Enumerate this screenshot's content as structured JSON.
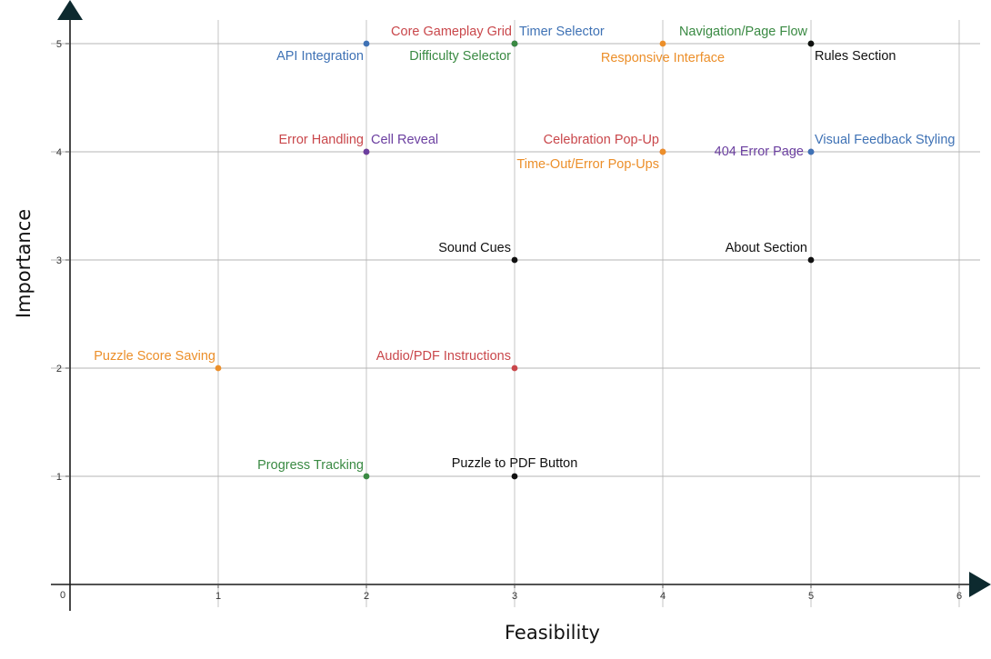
{
  "chart_data": {
    "type": "scatter",
    "xlabel": "Feasibility",
    "ylabel": "Importance",
    "xlim": [
      0,
      6
    ],
    "ylim": [
      0,
      5
    ],
    "x_ticks": [
      "0",
      "1",
      "2",
      "3",
      "4",
      "5",
      "6"
    ],
    "y_ticks": [
      "1",
      "2",
      "3",
      "4",
      "5"
    ],
    "grid": true,
    "colors": {
      "red": "#c9474b",
      "blue": "#3f72b5",
      "green": "#3a8a43",
      "orange": "#ec8f2a",
      "purple": "#6b3fa0",
      "black": "#111111"
    },
    "points": [
      {
        "label": "API Integration",
        "x": 2,
        "y": 5,
        "color": "blue"
      },
      {
        "label": "Core Gameplay Grid",
        "x": 3,
        "y": 5,
        "color": "red"
      },
      {
        "label": "Timer Selector",
        "x": 3,
        "y": 5,
        "color": "blue"
      },
      {
        "label": "Difficulty Selector",
        "x": 3,
        "y": 5,
        "color": "green"
      },
      {
        "label": "Responsive Interface",
        "x": 4,
        "y": 5,
        "color": "orange"
      },
      {
        "label": "Navigation/Page Flow",
        "x": 5,
        "y": 5,
        "color": "green"
      },
      {
        "label": "Rules Section",
        "x": 5,
        "y": 5,
        "color": "black"
      },
      {
        "label": "Error Handling",
        "x": 2,
        "y": 4,
        "color": "red"
      },
      {
        "label": "Cell Reveal",
        "x": 2,
        "y": 4,
        "color": "purple"
      },
      {
        "label": "Celebration Pop-Up",
        "x": 4,
        "y": 4,
        "color": "red"
      },
      {
        "label": "Time-Out/Error Pop-Ups",
        "x": 4,
        "y": 4,
        "color": "orange"
      },
      {
        "label": "404 Error Page",
        "x": 5,
        "y": 4,
        "color": "purple"
      },
      {
        "label": "Visual Feedback Styling",
        "x": 5,
        "y": 4,
        "color": "blue"
      },
      {
        "label": "Sound Cues",
        "x": 3,
        "y": 3,
        "color": "black"
      },
      {
        "label": "About Section",
        "x": 5,
        "y": 3,
        "color": "black"
      },
      {
        "label": "Puzzle Score Saving",
        "x": 1,
        "y": 2,
        "color": "orange"
      },
      {
        "label": "Audio/PDF Instructions",
        "x": 3,
        "y": 2,
        "color": "red"
      },
      {
        "label": "Progress Tracking",
        "x": 2,
        "y": 1,
        "color": "green"
      },
      {
        "label": "Puzzle to PDF Button",
        "x": 3,
        "y": 1,
        "color": "black"
      }
    ]
  }
}
